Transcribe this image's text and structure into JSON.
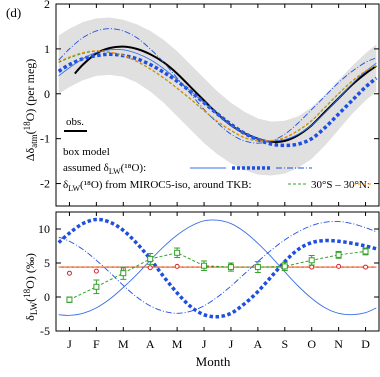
{
  "panel_label": "(d)",
  "xlabel": "Month",
  "colors": {
    "obs": "#000000",
    "model_blue": "#1f4fe0",
    "miroc_green": "#33a02c",
    "miroc_orange": "#ff8c00",
    "band": "#e0e0e0",
    "red_line": "#d62728",
    "thin_blue": "#3b6fe6"
  },
  "top_legend": {
    "obs": "obs.",
    "box_model": "box model",
    "assumed": "assumed δ",
    "assumed_sub": "LW",
    "assumed_tail": "(¹⁸O):",
    "from_prefix": "δ",
    "from_sub": "LW",
    "from_tail": "(¹⁸O) from",
    "miroc": "MIROC5-iso,",
    "around": "around TKB:",
    "band": "30°S – 30°N:"
  },
  "chart_data": [
    {
      "type": "line",
      "ylabel_parts": [
        "Δδ",
        "atm",
        "(",
        "18",
        "O) (per meg)"
      ],
      "ylim": [
        -2.5,
        2
      ],
      "yticks": [
        -2,
        -1,
        0,
        1,
        2
      ],
      "ytick_labels": [
        "-2",
        "-1",
        "0",
        "1",
        "2"
      ],
      "grid": false,
      "series": [
        {
          "key": "obs",
          "style": "solid-black",
          "x": [
            1.2,
            1.5,
            2,
            2.5,
            3,
            3.5,
            4,
            4.5,
            5,
            5.5,
            6,
            6.5,
            7,
            7.5,
            8,
            8.5,
            9,
            9.5,
            10,
            10.5,
            11,
            11.5,
            12,
            12.4
          ],
          "y": [
            0.45,
            0.65,
            0.9,
            1.02,
            1.05,
            1.0,
            0.88,
            0.7,
            0.45,
            0.15,
            -0.15,
            -0.45,
            -0.7,
            -0.88,
            -1.0,
            -1.07,
            -1.05,
            -0.92,
            -0.7,
            -0.4,
            -0.1,
            0.2,
            0.45,
            0.62
          ]
        },
        {
          "key": "model_bold",
          "style": "bold-dotted-blue",
          "x": [
            0.6,
            1,
            1.5,
            2,
            2.5,
            3,
            3.5,
            4,
            4.5,
            5,
            5.5,
            6,
            6.5,
            7,
            7.5,
            8,
            8.5,
            9,
            9.5,
            10,
            10.5,
            11,
            11.5,
            12,
            12.4
          ],
          "y": [
            0.5,
            0.65,
            0.78,
            0.85,
            0.88,
            0.85,
            0.78,
            0.65,
            0.48,
            0.28,
            0.05,
            -0.2,
            -0.45,
            -0.68,
            -0.88,
            -1.02,
            -1.12,
            -1.15,
            -1.12,
            -1.0,
            -0.75,
            -0.45,
            -0.15,
            0.15,
            0.35
          ]
        },
        {
          "key": "model_thin",
          "style": "thin-solid-blue",
          "x": [
            0.6,
            1,
            1.5,
            2,
            2.5,
            3,
            3.5,
            4,
            4.5,
            5,
            5.5,
            6,
            6.5,
            7,
            7.5,
            8,
            8.5,
            9,
            9.5,
            10,
            10.5,
            11,
            11.5,
            12,
            12.4
          ],
          "y": [
            0.4,
            0.58,
            0.78,
            0.92,
            0.98,
            0.98,
            0.9,
            0.76,
            0.56,
            0.32,
            0.06,
            -0.2,
            -0.46,
            -0.7,
            -0.88,
            -1.0,
            -1.05,
            -1.02,
            -0.9,
            -0.7,
            -0.42,
            -0.1,
            0.22,
            0.5,
            0.68
          ]
        },
        {
          "key": "model_dashdot",
          "style": "dashdot-blue",
          "x": [
            0.6,
            1,
            1.5,
            2,
            2.5,
            3,
            3.5,
            4,
            4.5,
            5,
            5.5,
            6,
            6.5,
            7,
            7.5,
            8,
            8.5,
            9,
            9.5,
            10,
            10.5,
            11,
            11.5,
            12,
            12.4
          ],
          "y": [
            0.75,
            1.0,
            1.25,
            1.4,
            1.45,
            1.4,
            1.25,
            1.0,
            0.7,
            0.35,
            0.0,
            -0.35,
            -0.65,
            -0.9,
            -1.05,
            -1.1,
            -1.05,
            -0.9,
            -0.65,
            -0.35,
            -0.05,
            0.25,
            0.5,
            0.7,
            0.8
          ]
        },
        {
          "key": "miroc_green",
          "style": "dashed-green",
          "x": [
            0.6,
            1,
            1.5,
            2,
            2.5,
            3,
            3.5,
            4,
            4.5,
            5,
            5.5,
            6,
            6.5,
            7,
            7.5,
            8,
            8.5,
            9,
            9.5,
            10,
            10.5,
            11,
            11.5,
            12,
            12.4
          ],
          "y": [
            0.7,
            0.8,
            0.9,
            0.95,
            0.92,
            0.85,
            0.72,
            0.55,
            0.35,
            0.12,
            -0.12,
            -0.38,
            -0.62,
            -0.82,
            -0.98,
            -1.05,
            -1.05,
            -0.98,
            -0.82,
            -0.6,
            -0.3,
            0.0,
            0.28,
            0.5,
            0.62
          ]
        },
        {
          "key": "miroc_orange",
          "style": "dashed-orange",
          "x": [
            0.6,
            1,
            1.5,
            2,
            2.5,
            3,
            3.5,
            4,
            4.5,
            5,
            5.5,
            6,
            6.5,
            7,
            7.5,
            8,
            8.5,
            9,
            9.5,
            10,
            10.5,
            11,
            11.5,
            12,
            12.4
          ],
          "y": [
            0.72,
            0.82,
            0.92,
            0.96,
            0.93,
            0.86,
            0.73,
            0.56,
            0.36,
            0.13,
            -0.11,
            -0.37,
            -0.61,
            -0.81,
            -0.97,
            -1.04,
            -1.04,
            -0.97,
            -0.81,
            -0.59,
            -0.29,
            0.01,
            0.29,
            0.51,
            0.63
          ]
        }
      ],
      "band": {
        "x": [
          0.6,
          1,
          1.5,
          2,
          2.5,
          3,
          3.5,
          4,
          4.5,
          5,
          5.5,
          6,
          6.5,
          7,
          7.5,
          8,
          8.5,
          9,
          9.5,
          10,
          10.5,
          11,
          11.5,
          12,
          12.4
        ],
        "upper": [
          1.3,
          1.45,
          1.6,
          1.68,
          1.7,
          1.65,
          1.55,
          1.4,
          1.2,
          0.95,
          0.65,
          0.35,
          0.05,
          -0.2,
          -0.4,
          -0.55,
          -0.62,
          -0.6,
          -0.5,
          -0.3,
          -0.02,
          0.3,
          0.62,
          0.9,
          1.1
        ],
        "lower": [
          0.0,
          0.15,
          0.3,
          0.4,
          0.42,
          0.38,
          0.25,
          0.05,
          -0.2,
          -0.5,
          -0.8,
          -1.1,
          -1.35,
          -1.55,
          -1.7,
          -1.8,
          -1.82,
          -1.78,
          -1.65,
          -1.45,
          -1.15,
          -0.8,
          -0.45,
          -0.15,
          0.05
        ]
      }
    },
    {
      "type": "line",
      "ylabel_parts": [
        "δ",
        "LW",
        "(",
        "18",
        "O) (‰)"
      ],
      "ylim": [
        -5,
        12.5
      ],
      "yticks": [
        -5,
        0,
        5,
        10
      ],
      "ytick_labels": [
        "-5",
        "0",
        "5",
        "10"
      ],
      "categories": [
        "J",
        "F",
        "M",
        "A",
        "M",
        "J",
        "J",
        "A",
        "S",
        "O",
        "N",
        "D"
      ],
      "xlabel": "Month",
      "series": [
        {
          "key": "model_bold",
          "style": "bold-dotted-blue",
          "x": [
            0.6,
            1,
            1.5,
            2,
            2.5,
            3,
            3.5,
            4,
            4.5,
            5,
            5.5,
            6,
            6.5,
            7,
            7.5,
            8,
            8.5,
            9,
            9.5,
            10,
            10.5,
            11,
            11.5,
            12,
            12.4
          ],
          "y": [
            8.0,
            9.4,
            10.8,
            11.4,
            11.0,
            9.8,
            7.9,
            5.6,
            3.0,
            0.6,
            -1.4,
            -2.6,
            -2.9,
            -2.4,
            -1.0,
            0.8,
            3.0,
            5.2,
            7.0,
            8.0,
            8.3,
            8.2,
            7.9,
            7.5,
            7.1
          ]
        },
        {
          "key": "model_thin",
          "style": "thin-solid-blue",
          "x": [
            0.6,
            1,
            1.5,
            2,
            2.5,
            3,
            3.5,
            4,
            4.5,
            5,
            5.5,
            6,
            6.5,
            7,
            7.5,
            8,
            8.5,
            9,
            9.5,
            10,
            10.5,
            11,
            11.5,
            12,
            12.4
          ],
          "y": [
            -2.6,
            -2.7,
            -2.4,
            -1.6,
            -0.3,
            1.4,
            3.3,
            5.4,
            7.4,
            9.1,
            10.4,
            11.2,
            11.3,
            10.8,
            9.6,
            7.9,
            5.9,
            3.7,
            1.6,
            -0.2,
            -1.6,
            -2.4,
            -2.6,
            -2.3,
            -1.6
          ]
        },
        {
          "key": "model_dashdot",
          "style": "dashdot-blue",
          "x": [
            0.6,
            1,
            1.5,
            2,
            2.5,
            3,
            3.5,
            4,
            4.5,
            5,
            5.5,
            6,
            6.5,
            7,
            7.5,
            8,
            8.5,
            9,
            9.5,
            10,
            10.5,
            11,
            11.5,
            12,
            12.4
          ],
          "y": [
            8.8,
            8.2,
            7.0,
            5.4,
            3.6,
            1.7,
            0.0,
            -1.3,
            -2.1,
            -2.4,
            -2.1,
            -1.3,
            0.0,
            1.6,
            3.4,
            5.2,
            6.9,
            8.4,
            9.6,
            10.5,
            11.0,
            11.1,
            10.8,
            10.2,
            9.6
          ]
        },
        {
          "key": "red_line",
          "style": "solid-red",
          "x": [
            0.6,
            12.4
          ],
          "y": [
            4.4,
            4.4
          ]
        },
        {
          "key": "miroc_orange_line",
          "style": "dashed-orange",
          "x": [
            0.6,
            12.4
          ],
          "y": [
            4.4,
            4.4
          ]
        },
        {
          "key": "miroc_orange_pts",
          "style": "orange-circles",
          "x": [
            1,
            2,
            3,
            4,
            5,
            6,
            7,
            8,
            9,
            10,
            11,
            12
          ],
          "y": [
            3.5,
            3.8,
            4.1,
            4.3,
            4.5,
            4.6,
            4.6,
            4.5,
            4.5,
            4.4,
            4.5,
            4.4
          ]
        },
        {
          "key": "miroc_green",
          "style": "green-errorbars",
          "x": [
            1,
            2,
            3,
            4,
            5,
            6,
            7,
            8,
            9,
            10,
            11,
            12
          ],
          "y": [
            -0.4,
            1.5,
            3.5,
            5.6,
            6.5,
            4.6,
            4.4,
            4.4,
            4.5,
            5.4,
            6.2,
            6.7
          ],
          "err": [
            0.4,
            1.0,
            0.9,
            0.8,
            0.7,
            0.7,
            0.6,
            0.8,
            0.6,
            0.7,
            0.5,
            0.5
          ]
        }
      ]
    }
  ]
}
